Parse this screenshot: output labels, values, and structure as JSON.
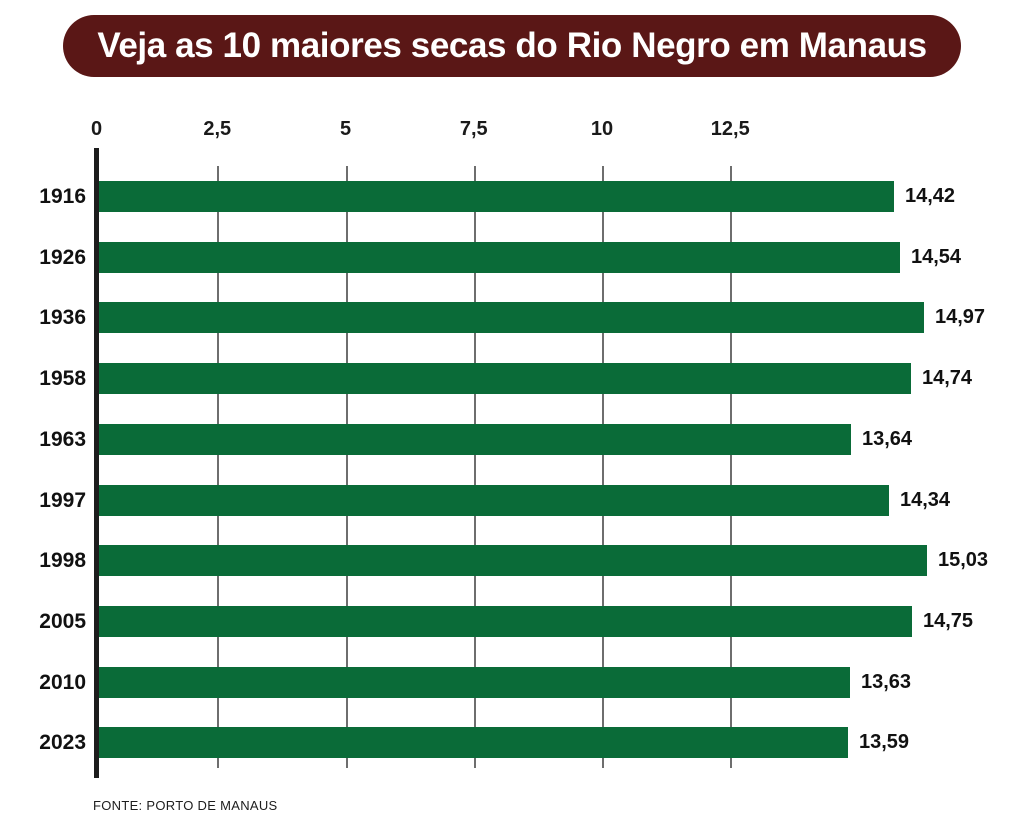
{
  "title": "Veja as 10 maiores secas do Rio Negro em Manaus",
  "source": "FONTE: PORTO DE MANAUS",
  "colors": {
    "banner_bg": "#5a1716",
    "bar_green": "#0a6b38",
    "label_text": "#111111",
    "gridline": "#6e6e6e",
    "axis_line": "#1c1c1c",
    "title_text": "#ffffff"
  },
  "chart_data": {
    "type": "bar",
    "orientation": "horizontal",
    "title": "Veja as 10 maiores secas do Rio Negro em Manaus",
    "categories": [
      "1916",
      "1926",
      "1936",
      "1958",
      "1963",
      "1997",
      "1998",
      "2005",
      "2010",
      "2023"
    ],
    "values": [
      14.42,
      14.54,
      14.97,
      14.74,
      13.64,
      14.34,
      15.03,
      14.75,
      13.63,
      13.59
    ],
    "value_labels": [
      "14,42",
      "14,54",
      "14,97",
      "14,74",
      "13,64",
      "14,34",
      "15,03",
      "14,75",
      "13,63",
      "13,59"
    ],
    "x_axis": {
      "position": "top",
      "tick_values": [
        0,
        2.5,
        5,
        7.5,
        10,
        12.5
      ],
      "tick_labels": [
        "0",
        "2,5",
        "5",
        "7,5",
        "10",
        "12,5"
      ]
    },
    "xlim": [
      0,
      12.5
    ],
    "grid": true,
    "legend": false,
    "source": "FONTE: PORTO DE MANAUS"
  }
}
